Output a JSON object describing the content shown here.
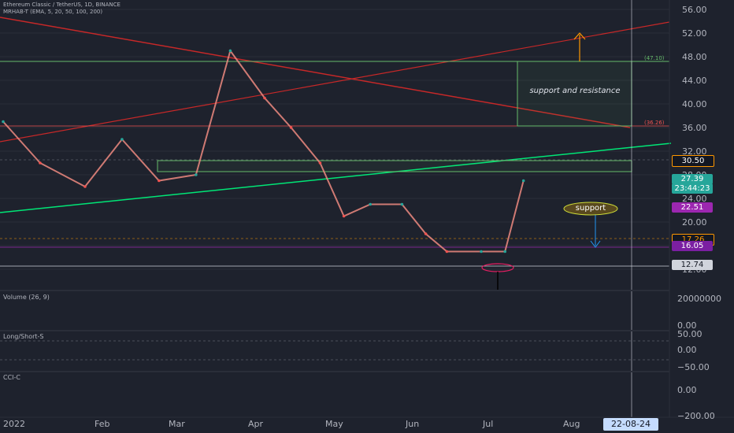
{
  "header": {
    "title": "Ethereum Classic / TetherUS, 1D, BINANCE",
    "indicator": "MRHAB-T (EMA, 5, 20, 50, 100, 200)"
  },
  "panes": {
    "volume_label": "Volume (26, 9)",
    "longshort_label": "Long/Short-S",
    "cci_label": "CCI-C"
  },
  "annotations": {
    "support_resistance": "support and resistance",
    "support": "support",
    "level_47": "(47.10)",
    "level_36": "(36.26)"
  },
  "price_labels": [
    {
      "text": "30.50",
      "bg": "#131722",
      "fg": "#ffffff",
      "border": "#ff9800",
      "value": 30.5
    },
    {
      "text": "27.39",
      "bg": "#26a69a",
      "fg": "#ffffff",
      "value": 27.39
    },
    {
      "text": "23:44:23",
      "bg": "#26a69a",
      "fg": "#ffffff",
      "value": 25.8
    },
    {
      "text": "22.51",
      "bg": "#9c27b0",
      "fg": "#ffffff",
      "value": 22.51
    },
    {
      "text": "17.26",
      "bg": "#131722",
      "fg": "#ff9800",
      "border": "#ff9800",
      "value": 17.26
    },
    {
      "text": "16.05",
      "bg": "#7b1fa2",
      "fg": "#ffffff",
      "value": 16.05
    },
    {
      "text": "12.74",
      "bg": "#d1d4dc",
      "fg": "#131722",
      "value": 12.74
    }
  ],
  "time_axis": {
    "ticks": [
      "2022",
      "Feb",
      "Mar",
      "Apr",
      "May",
      "Jun",
      "Jul",
      "Aug"
    ],
    "cursor_label": "22-08-24"
  },
  "volume_axis": [
    "20000000",
    "0.00"
  ],
  "longshort_axis": [
    "50.00",
    "0.00",
    "−50.00"
  ],
  "cci_axis": [
    "0.00",
    "−200.00"
  ],
  "colors": {
    "up": "#26a69a",
    "down": "#ef5350",
    "red_line": "#c62828",
    "green_line": "#00e676",
    "orange": "#ff9800"
  },
  "chart_data": {
    "type": "line",
    "title": "Ethereum Classic / TetherUS, 1D, BINANCE",
    "xlabel": "",
    "ylabel": "",
    "y_ticks": [
      56,
      52,
      48,
      44,
      40,
      36,
      32,
      28,
      24,
      20,
      16,
      12
    ],
    "ylim": [
      11,
      57
    ],
    "x": [
      "2022-01-01",
      "2022-01-15",
      "2022-02-01",
      "2022-02-15",
      "2022-03-01",
      "2022-03-15",
      "2022-03-28",
      "2022-04-10",
      "2022-04-20",
      "2022-05-01",
      "2022-05-10",
      "2022-05-20",
      "2022-06-01",
      "2022-06-10",
      "2022-06-18",
      "2022-07-01",
      "2022-07-10",
      "2022-07-17"
    ],
    "series": [
      {
        "values": [
          37,
          30,
          26,
          34,
          27,
          28,
          49,
          41,
          36,
          30,
          21,
          23,
          23,
          18,
          15,
          15,
          15,
          27
        ]
      }
    ]
  }
}
